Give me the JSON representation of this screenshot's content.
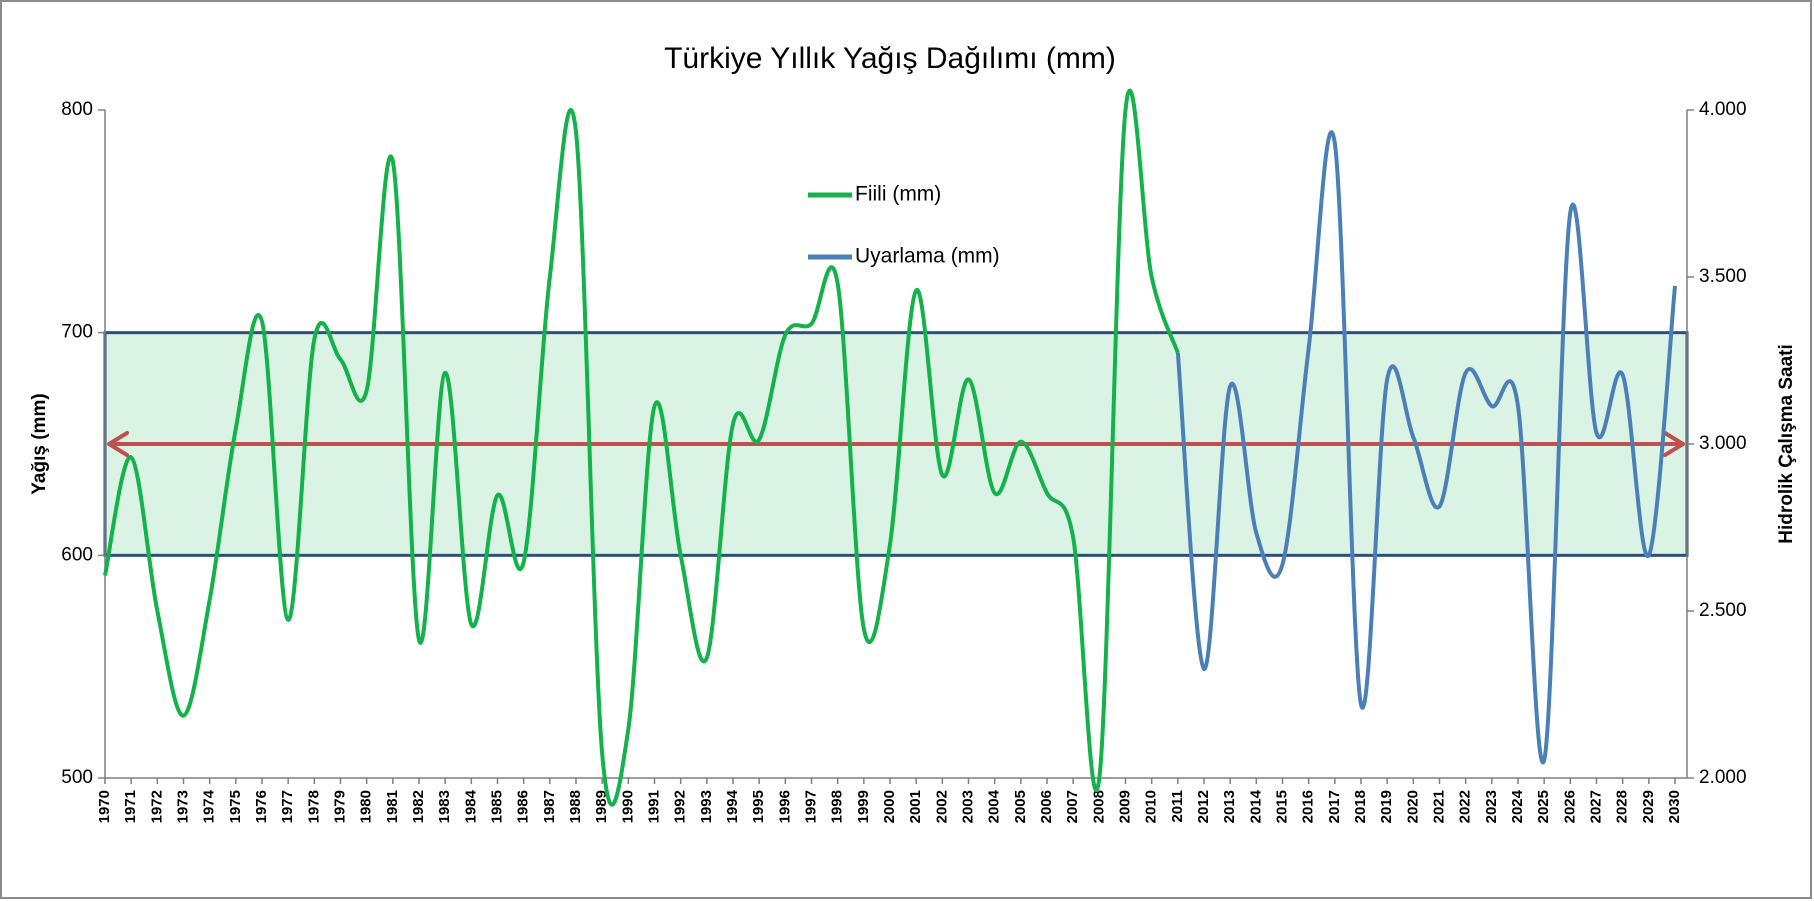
{
  "chart_data": {
    "type": "line",
    "title": "Türkiye Yıllık Yağış Dağılımı (mm)",
    "y_label": "Yağış (mm)",
    "y2_label": "Hidrolik Çalışma Saati",
    "categories": [
      "1970",
      "1971",
      "1972",
      "1973",
      "1974",
      "1975",
      "1976",
      "1977",
      "1978",
      "1979",
      "1980",
      "1981",
      "1982",
      "1983",
      "1984",
      "1985",
      "1986",
      "1987",
      "1988",
      "1989",
      "1990",
      "1991",
      "1992",
      "1993",
      "1994",
      "1995",
      "1996",
      "1997",
      "1998",
      "1999",
      "2000",
      "2001",
      "2002",
      "2003",
      "2004",
      "2005",
      "2006",
      "2007",
      "2008",
      "2009",
      "2010",
      "2011",
      "2012",
      "2013",
      "2014",
      "2015",
      "2016",
      "2017",
      "2018",
      "2019",
      "2020",
      "2021",
      "2022",
      "2023",
      "2024",
      "2025",
      "2026",
      "2027",
      "2028",
      "2029",
      "2030"
    ],
    "series": [
      {
        "name": "Fiili (mm)",
        "color": "#13b24a",
        "values": [
          591,
          644,
          575,
          528,
          580,
          657,
          705,
          571,
          697,
          688,
          674,
          777,
          562,
          682,
          569,
          627,
          597,
          725,
          790,
          511,
          522,
          667,
          600,
          554,
          659,
          652,
          699,
          704,
          722,
          567,
          605,
          719,
          636,
          679,
          628,
          651,
          628,
          608,
          500,
          800,
          725,
          691,
          null,
          null,
          null,
          null,
          null,
          null,
          null,
          null,
          null,
          null,
          null,
          null,
          null,
          null,
          null,
          null,
          null,
          null,
          null
        ]
      },
      {
        "name": "Uyarlama (mm)",
        "color": "#4a7fb8",
        "values": [
          null,
          null,
          null,
          null,
          null,
          null,
          null,
          null,
          null,
          null,
          null,
          null,
          null,
          null,
          null,
          null,
          null,
          null,
          null,
          null,
          null,
          null,
          null,
          null,
          null,
          null,
          null,
          null,
          null,
          null,
          null,
          null,
          null,
          null,
          null,
          null,
          null,
          null,
          null,
          null,
          null,
          691,
          549,
          676,
          610,
          596,
          693,
          785,
          533,
          679,
          653,
          622,
          682,
          667,
          667,
          508,
          754,
          655,
          681,
          600,
          721
        ]
      }
    ],
    "ylim": [
      500,
      800
    ],
    "yticks": [
      500,
      600,
      700,
      800
    ],
    "y2lim": [
      2,
      4
    ],
    "y2ticks": [
      {
        "value": 2,
        "label": "2.000"
      },
      {
        "value": 2.5,
        "label": "2.500"
      },
      {
        "value": 3,
        "label": "3.000"
      },
      {
        "value": 3.5,
        "label": "3.500"
      },
      {
        "value": 4,
        "label": "4.000"
      }
    ],
    "band": {
      "from": 600,
      "to": 700,
      "color": "#dbf3e4",
      "edge": "#2d4f7a"
    },
    "reference": {
      "value": 650,
      "color": "#c0504d"
    },
    "grid": false
  }
}
